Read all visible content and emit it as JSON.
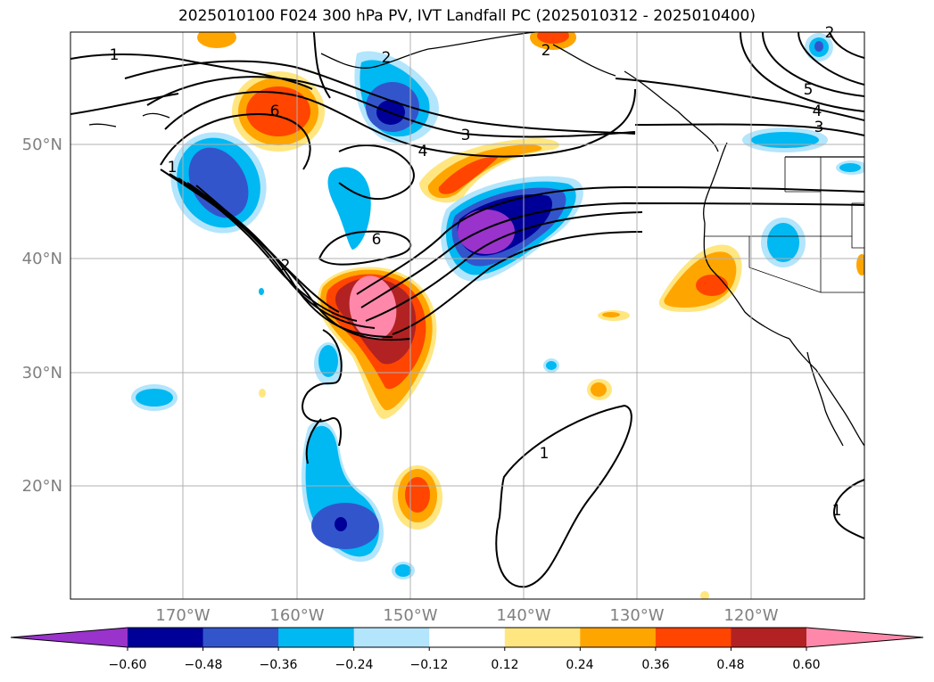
{
  "title": "2025010100 F024 300 hPa PV, IVT Landfall PC (2025010312 - 2025010400)",
  "map": {
    "lat_labels": [
      "50°N",
      "40°N",
      "30°N",
      "20°N"
    ],
    "lon_labels": [
      "170°W",
      "160°W",
      "150°W",
      "140°W",
      "130°W",
      "120°W"
    ],
    "label_color": "#808080"
  },
  "contour_labels": [
    "1",
    "2",
    "6",
    "3",
    "4",
    "6",
    "2",
    "1",
    "2",
    "5",
    "4",
    "3",
    "1",
    "2",
    "1"
  ],
  "colorbar": {
    "tick_labels": [
      "−0.60",
      "−0.48",
      "−0.36",
      "−0.24",
      "−0.12",
      "0.12",
      "0.24",
      "0.36",
      "0.48",
      "0.60"
    ],
    "colors": [
      "#9933cc",
      "#000099",
      "#3355cc",
      "#00b8f2",
      "#b3e5fc",
      "#ffffff",
      "#ffe680",
      "#ffa500",
      "#ff4500",
      "#b22222",
      "#ff88aa"
    ]
  }
}
